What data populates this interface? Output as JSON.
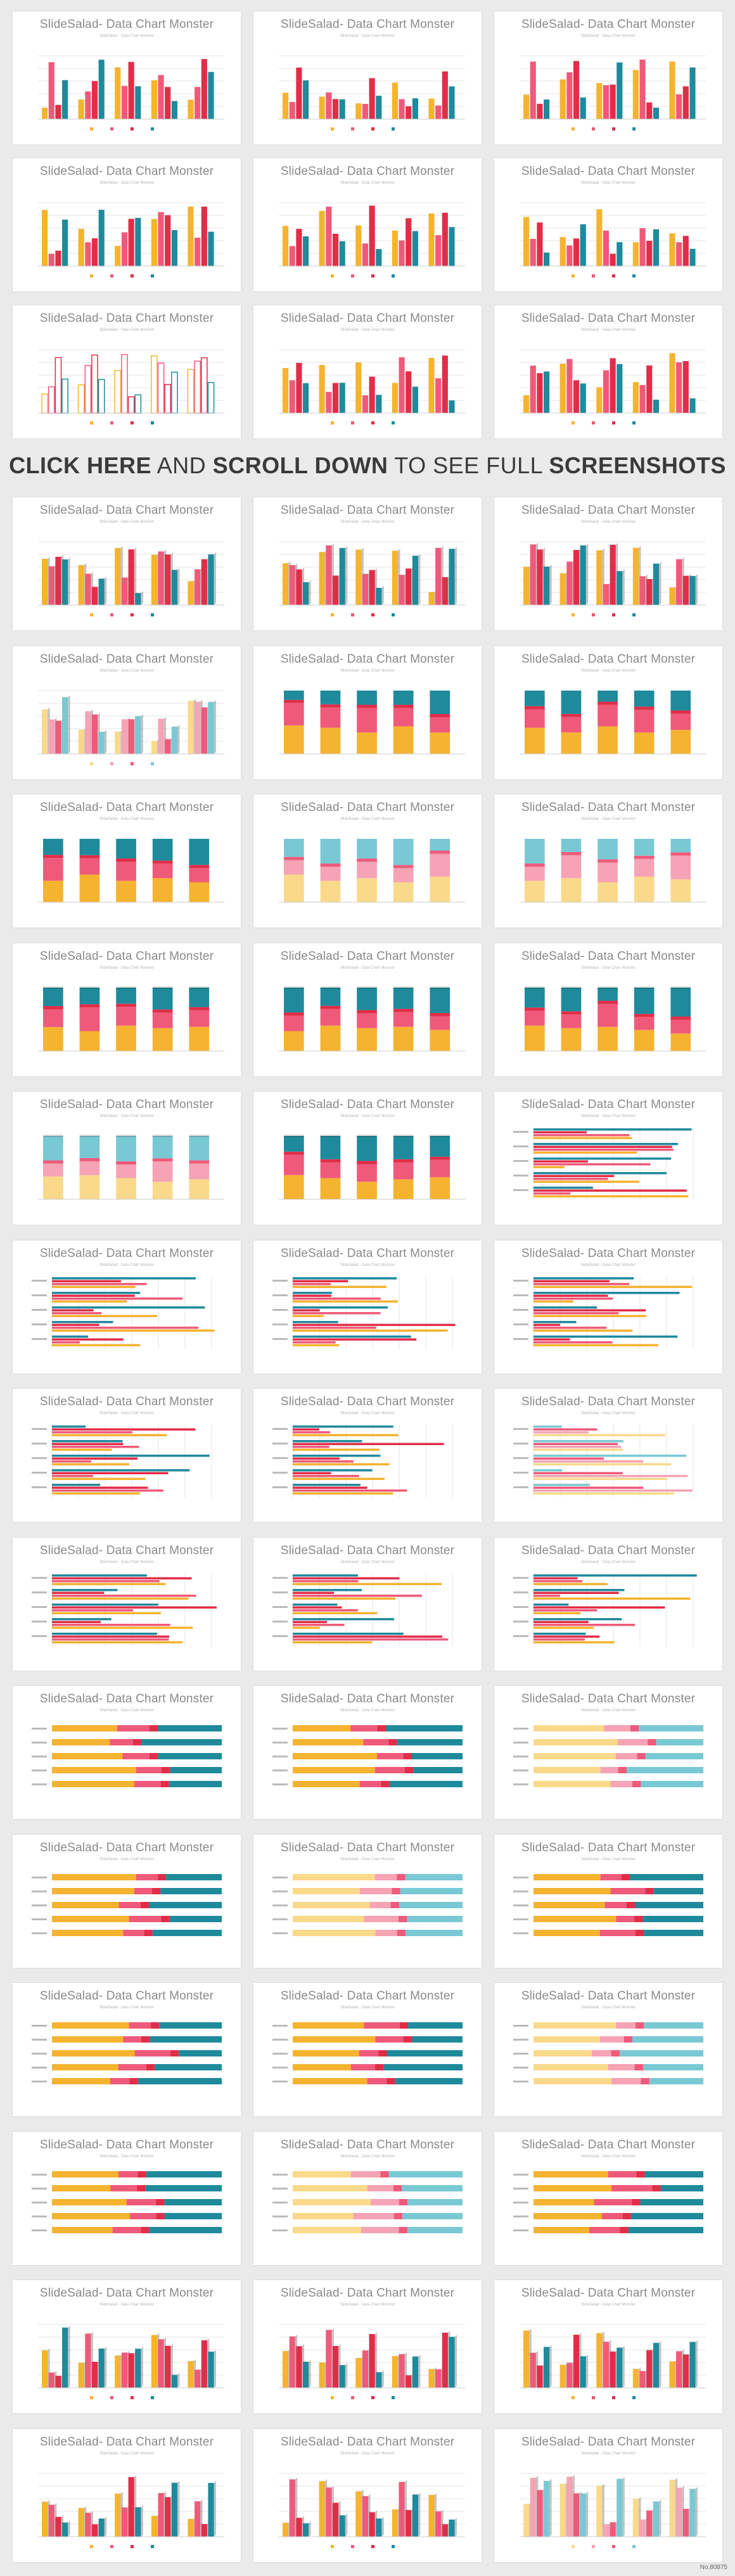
{
  "card_title": "SlideSalad- Data Chart Monster",
  "card_subtitle": "SlideSalad - Data Chart Monster",
  "banner": {
    "part1": "CLICK HERE",
    "part2": " AND ",
    "part3": "SCROLL DOWN",
    "part4": " TO SEE FULL ",
    "part5": "SCREENSHOTS"
  },
  "footer_id": "No.80875",
  "colors": {
    "yellow": "#f5b330",
    "pink": "#ef5a7a",
    "red": "#e12d48",
    "teal": "#1f8a9c",
    "light_yellow": "#fbd98a",
    "light_pink": "#f5a3b5",
    "light_teal": "#79c9d4",
    "grid": "#e6e6e6",
    "axis": "#cccccc"
  },
  "cards": [
    {
      "type": "col"
    },
    {
      "type": "col"
    },
    {
      "type": "col"
    },
    {
      "type": "col"
    },
    {
      "type": "col"
    },
    {
      "type": "col"
    },
    {
      "type": "col-outline"
    },
    {
      "type": "col"
    },
    {
      "type": "col"
    },
    {
      "type": "col3d"
    },
    {
      "type": "col3d"
    },
    {
      "type": "col3d"
    },
    {
      "type": "col3d-light"
    },
    {
      "type": "stack"
    },
    {
      "type": "stack"
    },
    {
      "type": "stack"
    },
    {
      "type": "stack-light"
    },
    {
      "type": "stack-light"
    },
    {
      "type": "stack3d"
    },
    {
      "type": "stack3d"
    },
    {
      "type": "stack3d"
    },
    {
      "type": "stack3d-light"
    },
    {
      "type": "stack3d"
    },
    {
      "type": "bar"
    },
    {
      "type": "bar"
    },
    {
      "type": "bar"
    },
    {
      "type": "bar"
    },
    {
      "type": "bar"
    },
    {
      "type": "bar"
    },
    {
      "type": "bar-light"
    },
    {
      "type": "bar"
    },
    {
      "type": "bar"
    },
    {
      "type": "bar"
    },
    {
      "type": "hstack"
    },
    {
      "type": "hstack"
    },
    {
      "type": "hstack-light"
    },
    {
      "type": "hstack"
    },
    {
      "type": "hstack-light"
    },
    {
      "type": "hstack"
    },
    {
      "type": "hstack"
    },
    {
      "type": "hstack"
    },
    {
      "type": "hstack-light"
    },
    {
      "type": "hstack"
    },
    {
      "type": "hstack-light"
    },
    {
      "type": "hstack"
    },
    {
      "type": "col3d"
    },
    {
      "type": "col3d"
    },
    {
      "type": "col3d"
    },
    {
      "type": "col3d"
    },
    {
      "type": "col3d"
    },
    {
      "type": "col3d-light"
    }
  ]
}
